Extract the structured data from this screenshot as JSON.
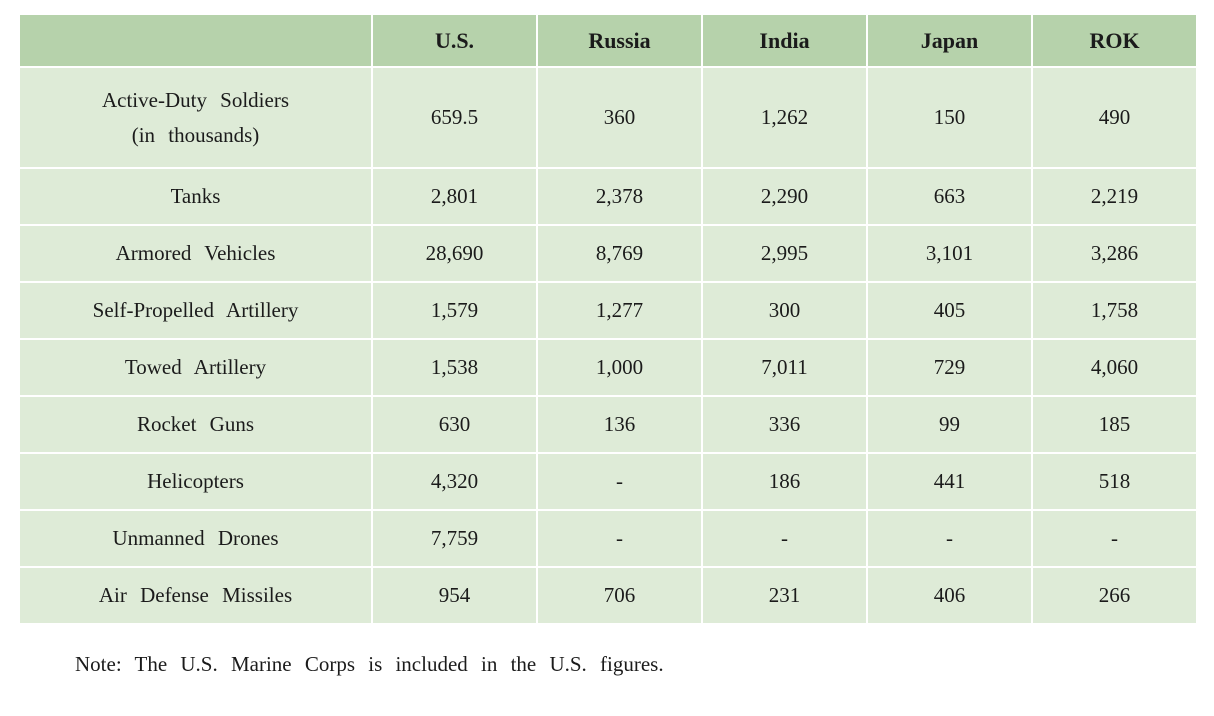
{
  "colors": {
    "header_bg": "#b6d2ab",
    "cell_bg": "#deebd7",
    "gridline": "#ffffff",
    "text": "#1b1b1b"
  },
  "table": {
    "columns": [
      "U.S.",
      "Russia",
      "India",
      "Japan",
      "ROK"
    ],
    "rows": [
      {
        "label_lines": [
          "Active-Duty Soldiers",
          "(in thousands)"
        ],
        "values": [
          "659.5",
          "360",
          "1,262",
          "150",
          "490"
        ]
      },
      {
        "label_lines": [
          "Tanks"
        ],
        "values": [
          "2,801",
          "2,378",
          "2,290",
          "663",
          "2,219"
        ]
      },
      {
        "label_lines": [
          "Armored Vehicles"
        ],
        "values": [
          "28,690",
          "8,769",
          "2,995",
          "3,101",
          "3,286"
        ]
      },
      {
        "label_lines": [
          "Self-Propelled Artillery"
        ],
        "values": [
          "1,579",
          "1,277",
          "300",
          "405",
          "1,758"
        ]
      },
      {
        "label_lines": [
          "Towed Artillery"
        ],
        "values": [
          "1,538",
          "1,000",
          "7,011",
          "729",
          "4,060"
        ]
      },
      {
        "label_lines": [
          "Rocket Guns"
        ],
        "values": [
          "630",
          "136",
          "336",
          "99",
          "185"
        ]
      },
      {
        "label_lines": [
          "Helicopters"
        ],
        "values": [
          "4,320",
          "-",
          "186",
          "441",
          "518"
        ]
      },
      {
        "label_lines": [
          "Unmanned Drones"
        ],
        "values": [
          "7,759",
          "-",
          "-",
          "-",
          "-"
        ]
      },
      {
        "label_lines": [
          "Air Defense Missiles"
        ],
        "values": [
          "954",
          "706",
          "231",
          "406",
          "266"
        ]
      }
    ]
  },
  "note": "Note: The U.S. Marine Corps is included in the U.S. figures.",
  "chart_data": {
    "type": "table",
    "title": "",
    "categories": [
      "U.S.",
      "Russia",
      "India",
      "Japan",
      "ROK"
    ],
    "series": [
      {
        "name": "Active-Duty Soldiers (in thousands)",
        "values": [
          659.5,
          360,
          1262,
          150,
          490
        ]
      },
      {
        "name": "Tanks",
        "values": [
          2801,
          2378,
          2290,
          663,
          2219
        ]
      },
      {
        "name": "Armored Vehicles",
        "values": [
          28690,
          8769,
          2995,
          3101,
          3286
        ]
      },
      {
        "name": "Self-Propelled Artillery",
        "values": [
          1579,
          1277,
          300,
          405,
          1758
        ]
      },
      {
        "name": "Towed Artillery",
        "values": [
          1538,
          1000,
          7011,
          729,
          4060
        ]
      },
      {
        "name": "Rocket Guns",
        "values": [
          630,
          136,
          336,
          99,
          185
        ]
      },
      {
        "name": "Helicopters",
        "values": [
          4320,
          null,
          186,
          441,
          518
        ]
      },
      {
        "name": "Unmanned Drones",
        "values": [
          7759,
          null,
          null,
          null,
          null
        ]
      },
      {
        "name": "Air Defense Missiles",
        "values": [
          954,
          706,
          231,
          406,
          266
        ]
      }
    ],
    "missing_value_marker": "-",
    "note": "Note: The U.S. Marine Corps is included in the U.S. figures."
  }
}
